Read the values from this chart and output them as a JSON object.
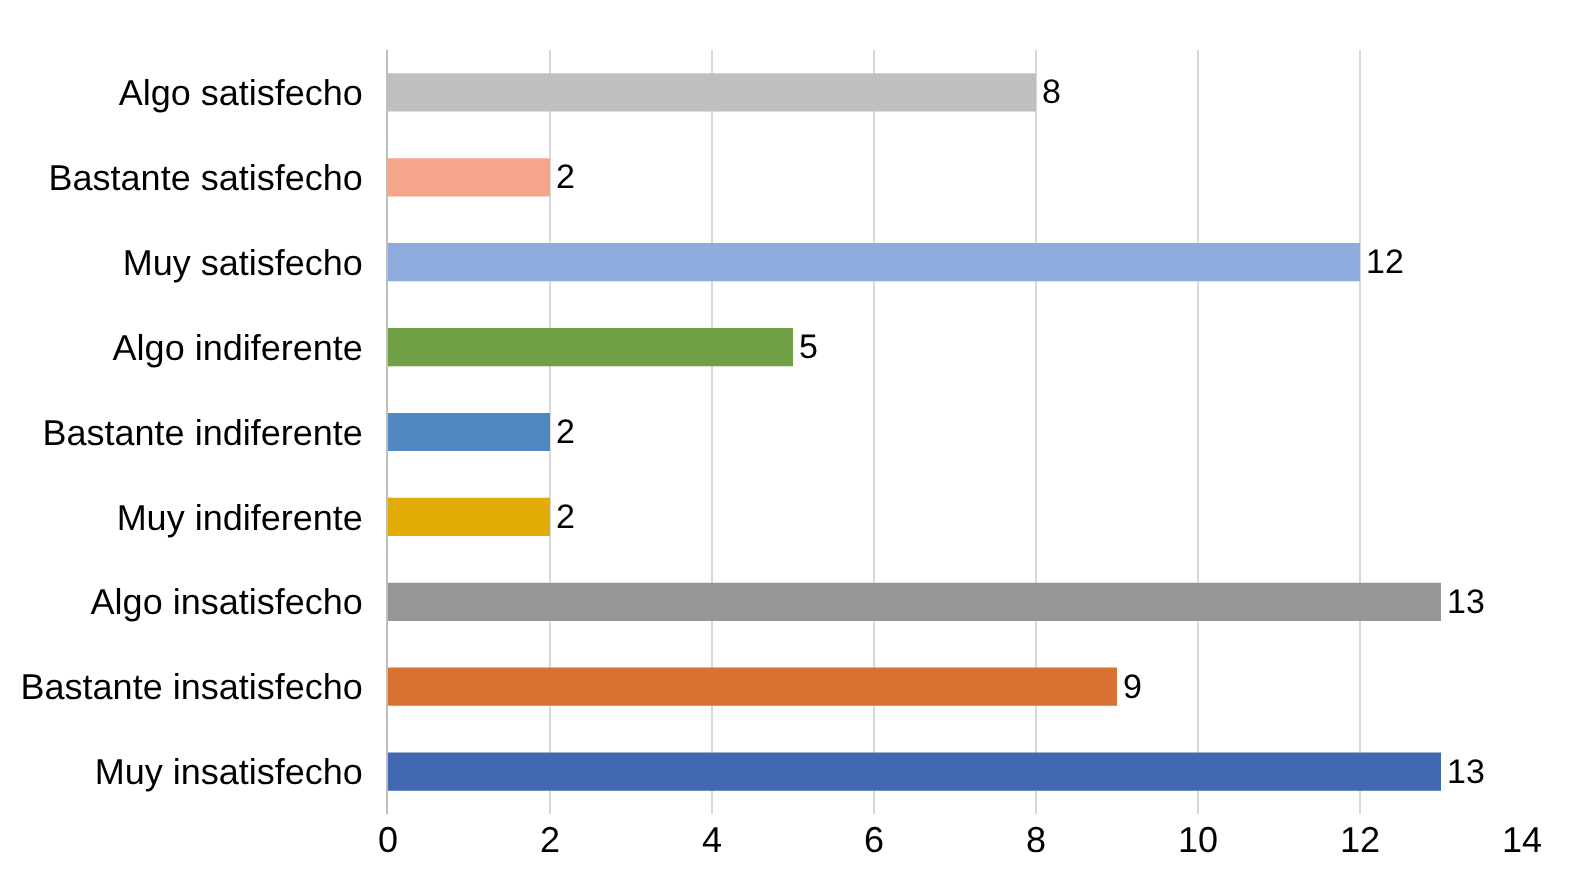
{
  "chart_data": {
    "type": "bar",
    "orientation": "horizontal",
    "categories": [
      "Algo satisfecho",
      "Bastante satisfecho",
      "Muy satisfecho",
      "Algo indiferente",
      "Bastante indiferente",
      "Muy indiferente",
      "Algo insatisfecho",
      "Bastante insatisfecho",
      "Muy insatisfecho"
    ],
    "values": [
      8,
      2,
      12,
      5,
      2,
      2,
      13,
      9,
      13
    ],
    "colors": [
      "#bfbfbf",
      "#f4a58a",
      "#8faadc",
      "#70a045",
      "#5089c0",
      "#e3ab05",
      "#969696",
      "#d97230",
      "#4168b0"
    ],
    "xlim": [
      0,
      14
    ],
    "xticks": [
      0,
      2,
      4,
      6,
      8,
      10,
      12,
      14
    ],
    "grid": "x",
    "data_labels": true
  }
}
